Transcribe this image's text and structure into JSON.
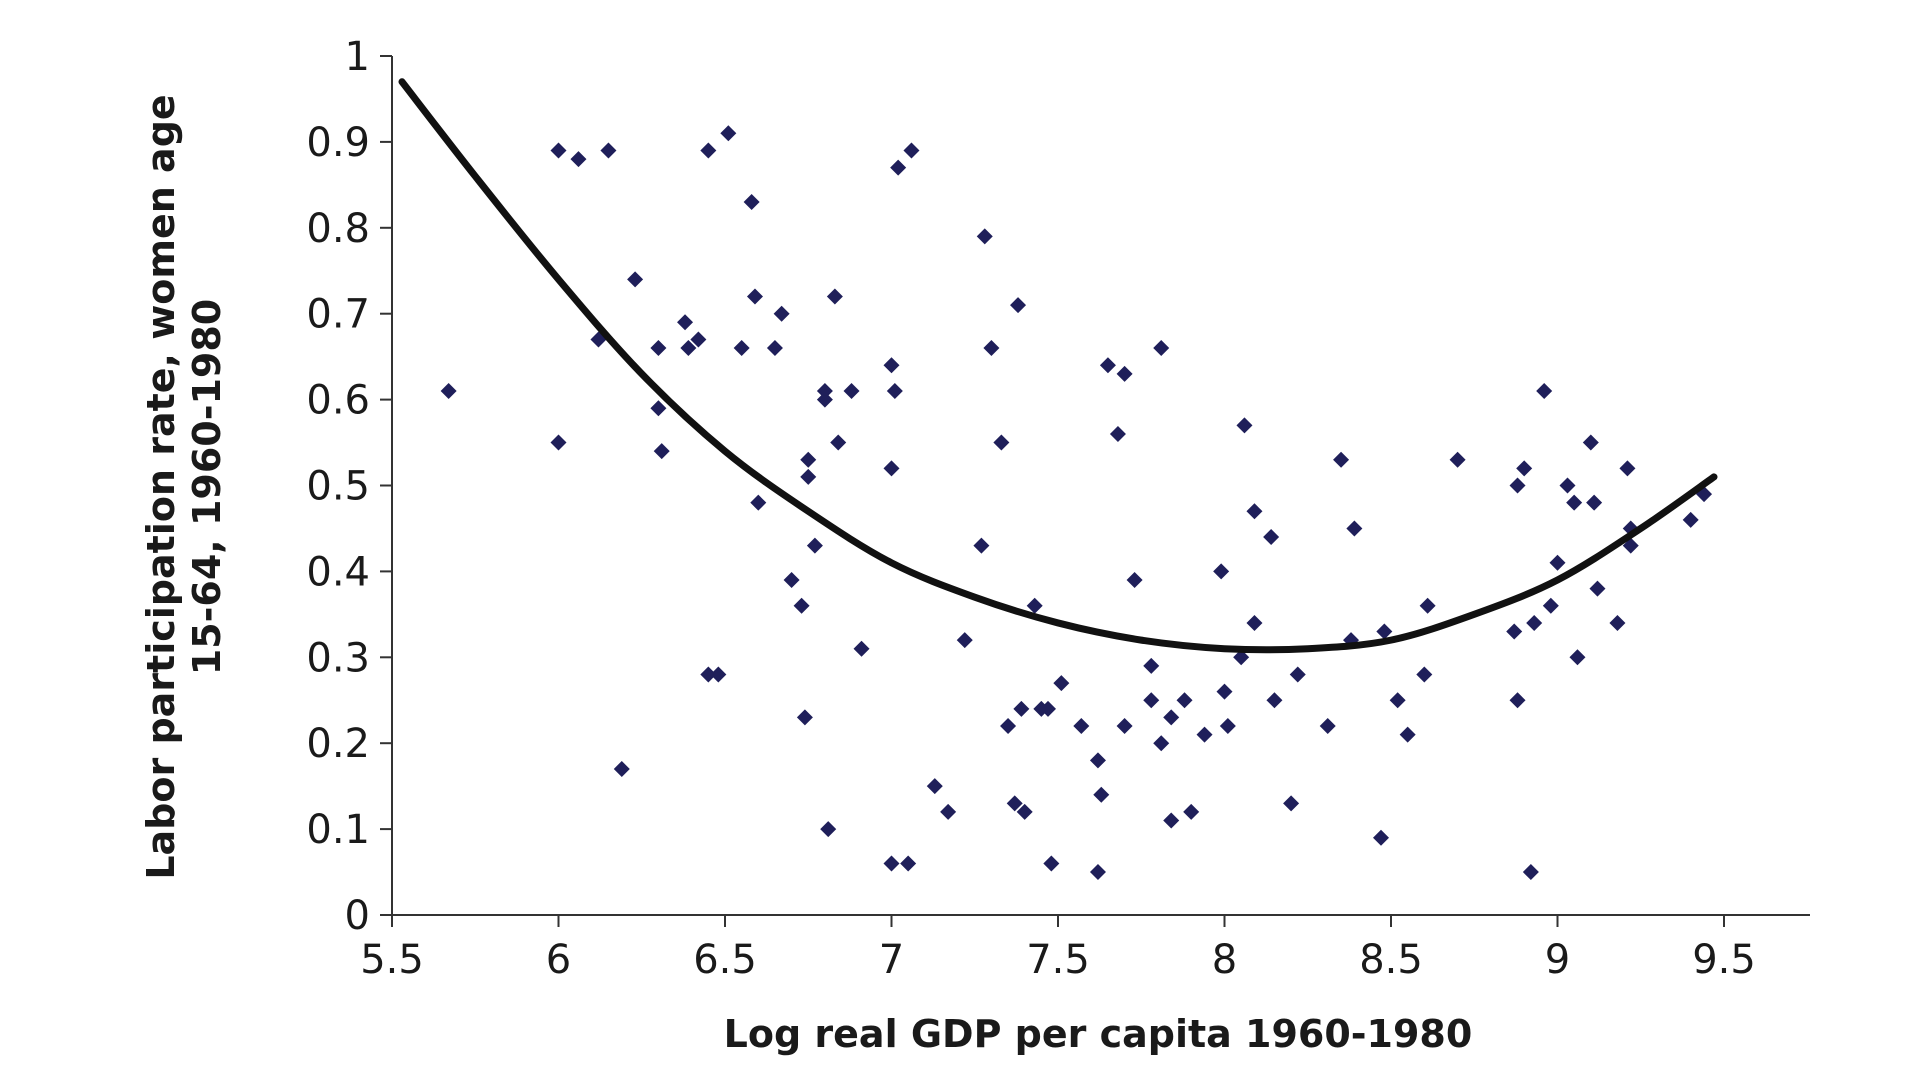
{
  "chart_data": {
    "type": "scatter",
    "title": "",
    "xlabel": "Log real GDP per capita 1960-1980",
    "ylabel_lines": [
      "Labor participation rate, women age",
      "15-64, 1960-1980"
    ],
    "xlim": [
      5.5,
      9.8
    ],
    "ylim": [
      0,
      1
    ],
    "xticks": [
      "5.5",
      "6",
      "6.5",
      "7",
      "7.5",
      "8",
      "8.5",
      "9",
      "9.5"
    ],
    "yticks": [
      "0",
      "0.1",
      "0.2",
      "0.3",
      "0.4",
      "0.5",
      "0.6",
      "0.7",
      "0.8",
      "0.9",
      "1"
    ],
    "grid": false,
    "legend": "none",
    "marker_color": "#1f1f5a",
    "curve_color": "#111111",
    "points": [
      [
        5.67,
        0.61
      ],
      [
        6.0,
        0.89
      ],
      [
        6.06,
        0.88
      ],
      [
        6.15,
        0.89
      ],
      [
        6.0,
        0.55
      ],
      [
        6.12,
        0.67
      ],
      [
        6.19,
        0.17
      ],
      [
        6.23,
        0.74
      ],
      [
        6.3,
        0.66
      ],
      [
        6.3,
        0.59
      ],
      [
        6.31,
        0.54
      ],
      [
        6.38,
        0.69
      ],
      [
        6.39,
        0.66
      ],
      [
        6.42,
        0.67
      ],
      [
        6.45,
        0.89
      ],
      [
        6.51,
        0.91
      ],
      [
        6.55,
        0.66
      ],
      [
        6.58,
        0.83
      ],
      [
        6.59,
        0.72
      ],
      [
        6.6,
        0.48
      ],
      [
        6.65,
        0.66
      ],
      [
        6.67,
        0.7
      ],
      [
        6.7,
        0.39
      ],
      [
        6.73,
        0.36
      ],
      [
        6.74,
        0.23
      ],
      [
        6.75,
        0.53
      ],
      [
        6.75,
        0.51
      ],
      [
        6.77,
        0.43
      ],
      [
        6.8,
        0.61
      ],
      [
        6.8,
        0.6
      ],
      [
        6.81,
        0.1
      ],
      [
        6.83,
        0.72
      ],
      [
        6.84,
        0.55
      ],
      [
        6.88,
        0.61
      ],
      [
        6.91,
        0.31
      ],
      [
        6.45,
        0.28
      ],
      [
        6.48,
        0.28
      ],
      [
        7.0,
        0.64
      ],
      [
        7.01,
        0.61
      ],
      [
        7.0,
        0.52
      ],
      [
        7.02,
        0.87
      ],
      [
        7.06,
        0.89
      ],
      [
        7.0,
        0.06
      ],
      [
        7.05,
        0.06
      ],
      [
        7.13,
        0.15
      ],
      [
        7.17,
        0.12
      ],
      [
        7.22,
        0.32
      ],
      [
        7.28,
        0.79
      ],
      [
        7.3,
        0.66
      ],
      [
        7.27,
        0.43
      ],
      [
        7.33,
        0.55
      ],
      [
        7.38,
        0.71
      ],
      [
        7.35,
        0.22
      ],
      [
        7.37,
        0.13
      ],
      [
        7.39,
        0.24
      ],
      [
        7.4,
        0.12
      ],
      [
        7.43,
        0.36
      ],
      [
        7.45,
        0.24
      ],
      [
        7.47,
        0.24
      ],
      [
        7.48,
        0.06
      ],
      [
        7.51,
        0.27
      ],
      [
        7.57,
        0.22
      ],
      [
        7.62,
        0.18
      ],
      [
        7.63,
        0.14
      ],
      [
        7.62,
        0.05
      ],
      [
        7.65,
        0.64
      ],
      [
        7.68,
        0.56
      ],
      [
        7.7,
        0.63
      ],
      [
        7.73,
        0.39
      ],
      [
        7.7,
        0.22
      ],
      [
        7.78,
        0.29
      ],
      [
        7.78,
        0.25
      ],
      [
        7.81,
        0.66
      ],
      [
        7.81,
        0.2
      ],
      [
        7.84,
        0.23
      ],
      [
        7.84,
        0.11
      ],
      [
        7.88,
        0.25
      ],
      [
        7.9,
        0.12
      ],
      [
        7.94,
        0.21
      ],
      [
        7.99,
        0.4
      ],
      [
        8.0,
        0.26
      ],
      [
        8.01,
        0.22
      ],
      [
        8.05,
        0.3
      ],
      [
        8.06,
        0.57
      ],
      [
        8.09,
        0.47
      ],
      [
        8.09,
        0.34
      ],
      [
        8.14,
        0.44
      ],
      [
        8.15,
        0.25
      ],
      [
        8.2,
        0.13
      ],
      [
        8.22,
        0.28
      ],
      [
        8.31,
        0.22
      ],
      [
        8.35,
        0.53
      ],
      [
        8.38,
        0.32
      ],
      [
        8.39,
        0.45
      ],
      [
        8.47,
        0.09
      ],
      [
        8.48,
        0.33
      ],
      [
        8.52,
        0.25
      ],
      [
        8.55,
        0.21
      ],
      [
        8.6,
        0.28
      ],
      [
        8.61,
        0.36
      ],
      [
        8.7,
        0.53
      ],
      [
        8.87,
        0.33
      ],
      [
        8.88,
        0.25
      ],
      [
        8.88,
        0.5
      ],
      [
        8.9,
        0.52
      ],
      [
        8.93,
        0.34
      ],
      [
        8.92,
        0.05
      ],
      [
        8.96,
        0.61
      ],
      [
        8.98,
        0.36
      ],
      [
        9.0,
        0.41
      ],
      [
        9.03,
        0.5
      ],
      [
        9.05,
        0.48
      ],
      [
        9.06,
        0.3
      ],
      [
        9.1,
        0.55
      ],
      [
        9.12,
        0.38
      ],
      [
        9.11,
        0.48
      ],
      [
        9.18,
        0.34
      ],
      [
        9.21,
        0.52
      ],
      [
        9.22,
        0.45
      ],
      [
        9.22,
        0.43
      ],
      [
        9.4,
        0.46
      ],
      [
        9.44,
        0.49
      ]
    ],
    "fit_curve": {
      "label": "",
      "x": [
        5.53,
        5.75,
        6.0,
        6.25,
        6.5,
        6.75,
        7.0,
        7.25,
        7.5,
        7.75,
        8.0,
        8.25,
        8.5,
        8.75,
        9.0,
        9.25,
        9.47
      ],
      "y": [
        0.97,
        0.86,
        0.74,
        0.63,
        0.54,
        0.47,
        0.41,
        0.37,
        0.34,
        0.32,
        0.31,
        0.31,
        0.32,
        0.35,
        0.39,
        0.45,
        0.51
      ]
    }
  }
}
